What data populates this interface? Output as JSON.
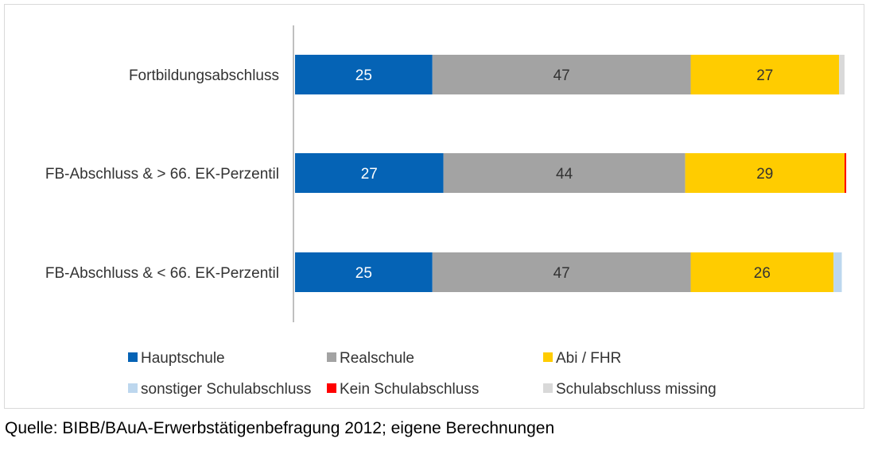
{
  "chart_data": {
    "type": "bar",
    "orientation": "horizontal",
    "stacked": true,
    "categories": [
      "Fortbildungsabschluss",
      "FB-Abschluss & > 66. EK-Perzentil",
      "FB-Abschluss & < 66. EK-Perzentil"
    ],
    "series": [
      {
        "name": "Hauptschule",
        "color": "#0563b5",
        "label_color": "#ffffff",
        "values": [
          25,
          27,
          25
        ],
        "labels": [
          "25",
          "27",
          "25"
        ]
      },
      {
        "name": "Realschule",
        "color": "#a3a3a3",
        "label_color": "#333333",
        "values": [
          47,
          44,
          47
        ],
        "labels": [
          "47",
          "44",
          "47"
        ]
      },
      {
        "name": "Abi / FHR",
        "color": "#ffcc00",
        "label_color": "#333333",
        "values": [
          27,
          29,
          26
        ],
        "labels": [
          "27",
          "29",
          "26"
        ]
      },
      {
        "name": "sonstiger Schulabschluss",
        "color": "#bdd7ee",
        "label_color": "#333333",
        "values": [
          0,
          0,
          1.5
        ],
        "labels": [
          "",
          "",
          ""
        ]
      },
      {
        "name": "Kein Schulabschluss",
        "color": "#ff0000",
        "label_color": "#333333",
        "values": [
          0,
          0.3,
          0
        ],
        "labels": [
          "",
          "",
          ""
        ]
      },
      {
        "name": "Schulabschluss missing",
        "color": "#d9d9d9",
        "label_color": "#333333",
        "values": [
          1,
          0,
          0
        ],
        "labels": [
          "",
          "",
          ""
        ]
      }
    ],
    "xlim": [
      0,
      100
    ],
    "grid": false,
    "legend_position": "bottom",
    "title": "",
    "xlabel": "",
    "ylabel": ""
  },
  "source_note": "Quelle: BIBB/BAuA-Erwerbstätigenbefragung 2012; eigene Berechnungen"
}
